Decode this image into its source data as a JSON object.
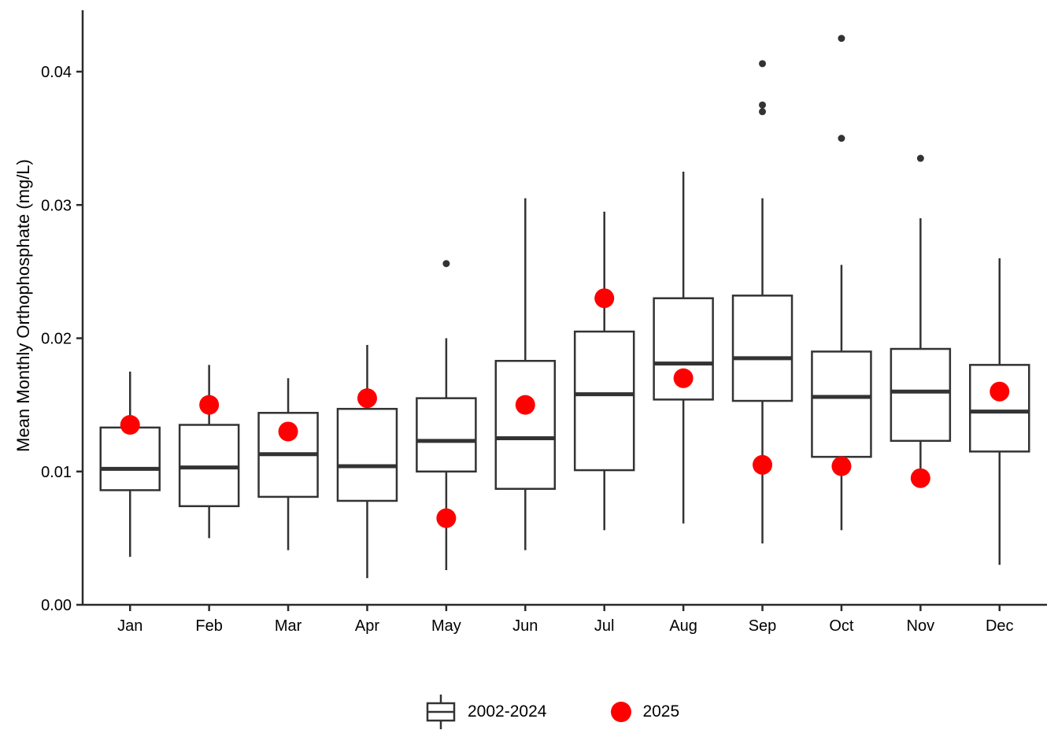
{
  "figure": {
    "title": "",
    "ylabel": "Mean Monthly Orthophosphate (mg/L)",
    "xlabel": ""
  },
  "y_axis": {
    "tick_labels": [
      "0.00",
      "0.01",
      "0.02",
      "0.03",
      "0.04"
    ],
    "tick_values": [
      0,
      0.01,
      0.02,
      0.03,
      0.04
    ]
  },
  "legend": {
    "items": [
      {
        "label": "2002-2024",
        "glyph": "boxplot-key"
      },
      {
        "label": "2025",
        "glyph": "red-dot"
      }
    ]
  },
  "colors": {
    "box_line": "#333333",
    "outlier": "#333333",
    "dot_2025": "#FF0000",
    "axis_line": "#2b2b2b",
    "text": "#000000",
    "background": "#FFFFFF"
  },
  "chart_data": {
    "type": "boxplot",
    "title": "",
    "xlabel": "",
    "ylabel": "Mean Monthly Orthophosphate (mg/L)",
    "ylim": [
      0,
      0.0445
    ],
    "grid": false,
    "legend_position": "bottom",
    "categories": [
      "Jan",
      "Feb",
      "Mar",
      "Apr",
      "May",
      "Jun",
      "Jul",
      "Aug",
      "Sep",
      "Oct",
      "Nov",
      "Dec"
    ],
    "series": [
      {
        "name": "2002-2024",
        "type": "box",
        "boxes": [
          {
            "month": "Jan",
            "whisker_low": 0.0036,
            "q1": 0.0086,
            "median": 0.0102,
            "q3": 0.0133,
            "whisker_high": 0.0175,
            "outliers": []
          },
          {
            "month": "Feb",
            "whisker_low": 0.005,
            "q1": 0.0074,
            "median": 0.0103,
            "q3": 0.0135,
            "whisker_high": 0.018,
            "outliers": []
          },
          {
            "month": "Mar",
            "whisker_low": 0.0041,
            "q1": 0.0081,
            "median": 0.0113,
            "q3": 0.0144,
            "whisker_high": 0.017,
            "outliers": []
          },
          {
            "month": "Apr",
            "whisker_low": 0.002,
            "q1": 0.0078,
            "median": 0.0104,
            "q3": 0.0147,
            "whisker_high": 0.0195,
            "outliers": []
          },
          {
            "month": "May",
            "whisker_low": 0.0026,
            "q1": 0.01,
            "median": 0.0123,
            "q3": 0.0155,
            "whisker_high": 0.02,
            "outliers": [
              0.0256
            ]
          },
          {
            "month": "Jun",
            "whisker_low": 0.0041,
            "q1": 0.0087,
            "median": 0.0125,
            "q3": 0.0183,
            "whisker_high": 0.0305,
            "outliers": []
          },
          {
            "month": "Jul",
            "whisker_low": 0.0056,
            "q1": 0.0101,
            "median": 0.0158,
            "q3": 0.0205,
            "whisker_high": 0.0295,
            "outliers": []
          },
          {
            "month": "Aug",
            "whisker_low": 0.0061,
            "q1": 0.0154,
            "median": 0.0181,
            "q3": 0.023,
            "whisker_high": 0.0325,
            "outliers": []
          },
          {
            "month": "Sep",
            "whisker_low": 0.0046,
            "q1": 0.0153,
            "median": 0.0185,
            "q3": 0.0232,
            "whisker_high": 0.0305,
            "outliers": [
              0.037,
              0.0375,
              0.0406
            ]
          },
          {
            "month": "Oct",
            "whisker_low": 0.0056,
            "q1": 0.0111,
            "median": 0.0156,
            "q3": 0.019,
            "whisker_high": 0.0255,
            "outliers": [
              0.035,
              0.0425
            ]
          },
          {
            "month": "Nov",
            "whisker_low": 0.01,
            "q1": 0.0123,
            "median": 0.016,
            "q3": 0.0192,
            "whisker_high": 0.029,
            "outliers": [
              0.0335
            ]
          },
          {
            "month": "Dec",
            "whisker_low": 0.003,
            "q1": 0.0115,
            "median": 0.0145,
            "q3": 0.018,
            "whisker_high": 0.026,
            "outliers": []
          }
        ]
      },
      {
        "name": "2025",
        "type": "scatter",
        "values": [
          0.0135,
          0.015,
          0.013,
          0.0155,
          0.0065,
          0.015,
          0.023,
          0.017,
          0.0105,
          0.0104,
          0.0095,
          0.016
        ]
      }
    ]
  }
}
